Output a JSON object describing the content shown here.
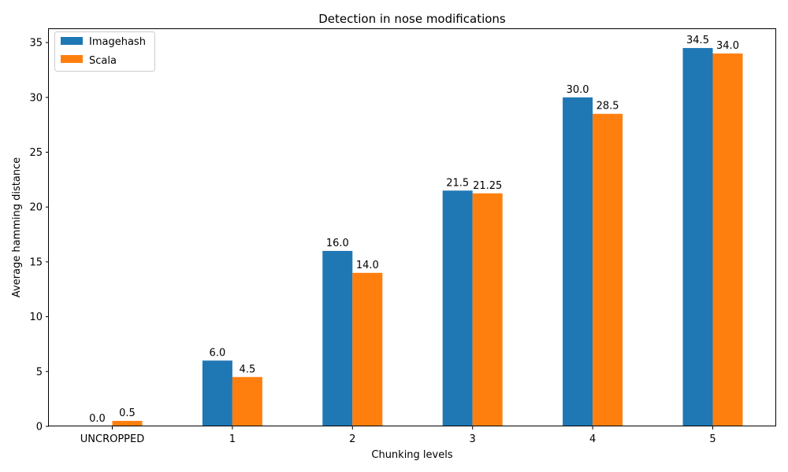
{
  "chart_data": {
    "type": "bar",
    "title": "Detection in nose modifications",
    "xlabel": "Chunking levels",
    "ylabel": "Average hamming distance",
    "categories": [
      "UNCROPPED",
      "1",
      "2",
      "3",
      "4",
      "5"
    ],
    "series": [
      {
        "name": "Imagehash",
        "color": "#1f77b4",
        "values": [
          0.0,
          6.0,
          16.0,
          21.5,
          30.0,
          34.5
        ],
        "labels": [
          "0.0",
          "6.0",
          "16.0",
          "21.5",
          "30.0",
          "34.5"
        ]
      },
      {
        "name": "Scala",
        "color": "#ff7f0e",
        "values": [
          0.5,
          4.5,
          14.0,
          21.25,
          28.5,
          34.0
        ],
        "labels": [
          "0.5",
          "4.5",
          "14.0",
          "21.25",
          "28.5",
          "34.0"
        ]
      }
    ],
    "ylim": [
      0,
      36.225
    ],
    "yticks": [
      0,
      5,
      10,
      15,
      20,
      25,
      30,
      35
    ],
    "grid": false,
    "legend": "top-left"
  }
}
